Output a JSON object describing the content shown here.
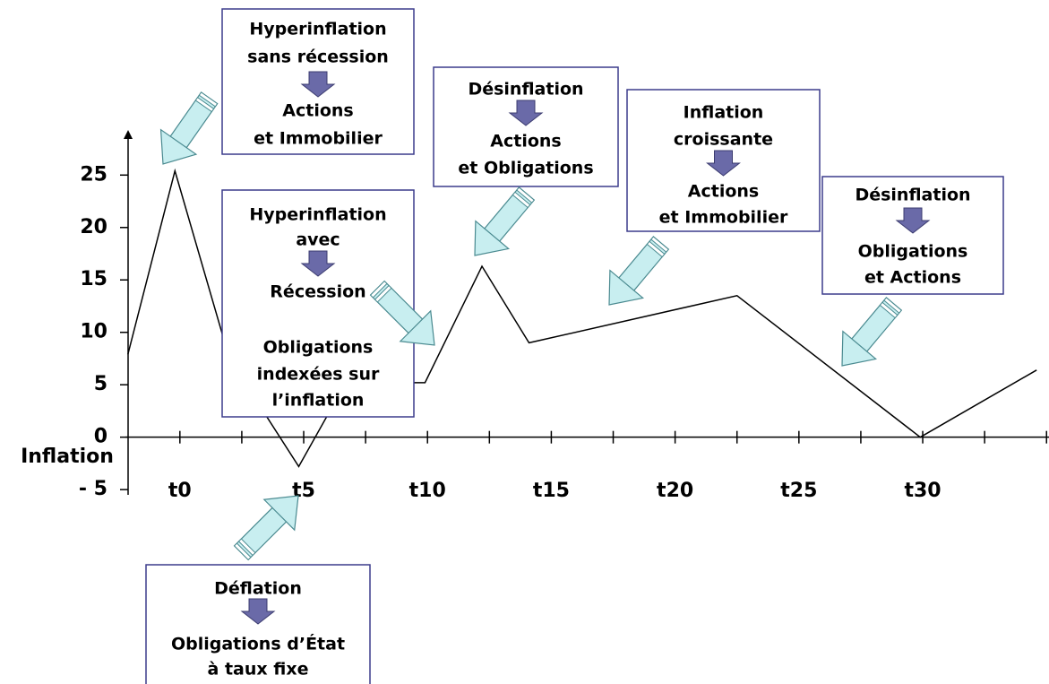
{
  "chart_data": {
    "type": "line",
    "y_label": "Inflation",
    "x": [
      -2.1,
      -0.2,
      2.0,
      4.8,
      6.7,
      9.9,
      12.2,
      14.1,
      22.5,
      29.9,
      34.6
    ],
    "values": [
      7.9,
      25.4,
      7.5,
      -2.8,
      5.2,
      5.2,
      16.3,
      9.0,
      13.5,
      0,
      6.4
    ],
    "color": "#000000",
    "xlim": [
      -2.2,
      35.1
    ],
    "ylim": [
      -5.5,
      29.3
    ],
    "yticks": [
      25,
      20,
      15,
      10,
      5,
      0,
      {
        "value": -5,
        "label": "- 5"
      }
    ],
    "xticks": [
      {
        "value": 0,
        "label": "t0"
      },
      {
        "value": 5,
        "label": "t5"
      },
      {
        "value": 10,
        "label": "t10"
      },
      {
        "value": 15,
        "label": "t15"
      },
      {
        "value": 20,
        "label": "t20"
      },
      {
        "value": 25,
        "label": "t25"
      },
      {
        "value": 30,
        "label": "t30"
      }
    ],
    "xminorticks": [
      2.5,
      7.5,
      12.5,
      17.5,
      22.5,
      27.5,
      32.5,
      35
    ],
    "annotations": [
      {
        "parts": [
          [
            "Hyperinflation",
            "sans récession"
          ],
          [
            "Actions",
            "et Immobilier"
          ]
        ]
      },
      {
        "parts": [
          [
            "Désinflation"
          ],
          [
            "Actions",
            "et Obligations"
          ]
        ]
      },
      {
        "parts": [
          [
            "Inflation",
            "croissante"
          ],
          [
            "Actions",
            "et Immobilier"
          ]
        ]
      },
      {
        "parts": [
          [
            "Désinflation"
          ],
          [
            "Obligations",
            "et Actions"
          ]
        ]
      },
      {
        "parts": [
          [
            "Hyperinflation",
            "avec"
          ],
          [
            "Récession"
          ],
          [
            "Obligations",
            "indexées sur",
            "l’inflation"
          ]
        ]
      },
      {
        "parts": [
          [
            "Déflation"
          ],
          [
            "Obligations d’État",
            "à taux fixe"
          ]
        ]
      }
    ]
  }
}
